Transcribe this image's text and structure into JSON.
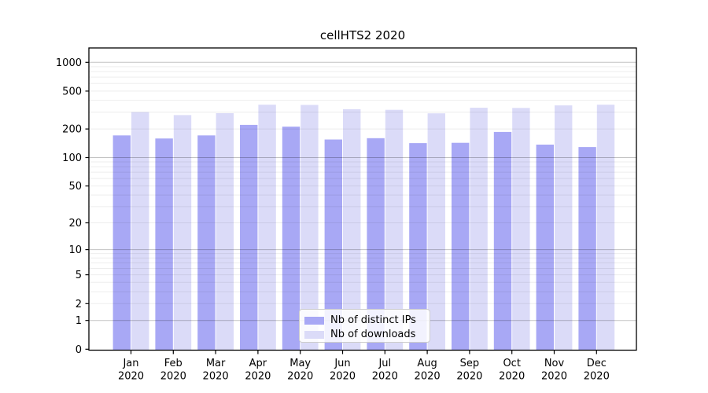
{
  "chart_data": {
    "type": "bar",
    "title": "cellHTS2 2020",
    "categories": [
      "Jan",
      "Feb",
      "Mar",
      "Apr",
      "May",
      "Jun",
      "Jul",
      "Aug",
      "Sep",
      "Oct",
      "Nov",
      "Dec"
    ],
    "year_label": "2020",
    "series": [
      {
        "name": "Nb of distinct IPs",
        "color": "#a8a8f5",
        "values": [
          171,
          159,
          171,
          221,
          212,
          155,
          160,
          142,
          143,
          186,
          137,
          129
        ]
      },
      {
        "name": "Nb of downloads",
        "color": "#dbdbf8",
        "values": [
          301,
          280,
          293,
          360,
          358,
          323,
          318,
          292,
          334,
          333,
          354,
          360
        ]
      }
    ],
    "yticks": [
      0,
      1,
      2,
      5,
      10,
      20,
      50,
      100,
      200,
      500,
      1000
    ],
    "major_gridlines": [
      1,
      10,
      100,
      1000
    ],
    "scale": "log10(value+1)",
    "ylim": [
      0,
      1400
    ],
    "grid": "horizontal major and minor, drawn across bars",
    "legend_position": "inside lower center-right",
    "xlabel": "",
    "ylabel": ""
  }
}
